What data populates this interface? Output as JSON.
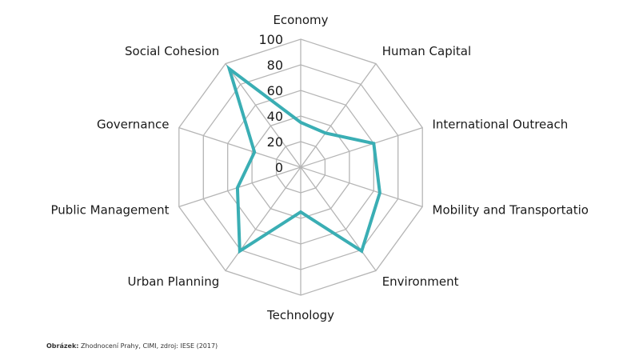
{
  "chart_data": {
    "type": "radar",
    "categories": [
      "Economy",
      "Human Capital",
      "International Outreach",
      "Mobility and Transportation",
      "Environment",
      "Technology",
      "Urban Planning",
      "Public Management",
      "Governance",
      "Social Cohesion"
    ],
    "visible_category_labels": [
      "Economy",
      "Human Capital",
      "International Outreach",
      "Mobility and Transportatio",
      "Environment",
      "Technology",
      "Urban Planning",
      "Public Management",
      "Governance",
      "Social Cohesion"
    ],
    "values": [
      35,
      33,
      60,
      65,
      81,
      35,
      81,
      52,
      38,
      95
    ],
    "ticks": [
      "0",
      "20",
      "40",
      "60",
      "80",
      "100"
    ],
    "rlim": [
      0,
      100
    ],
    "line_color": "#3aaeb4",
    "grid_color": "#b5b5b5"
  },
  "caption": {
    "label": "Obrázek:",
    "text": "Zhodnocení Prahy, CIMI, zdroj: IESE (2017)"
  }
}
